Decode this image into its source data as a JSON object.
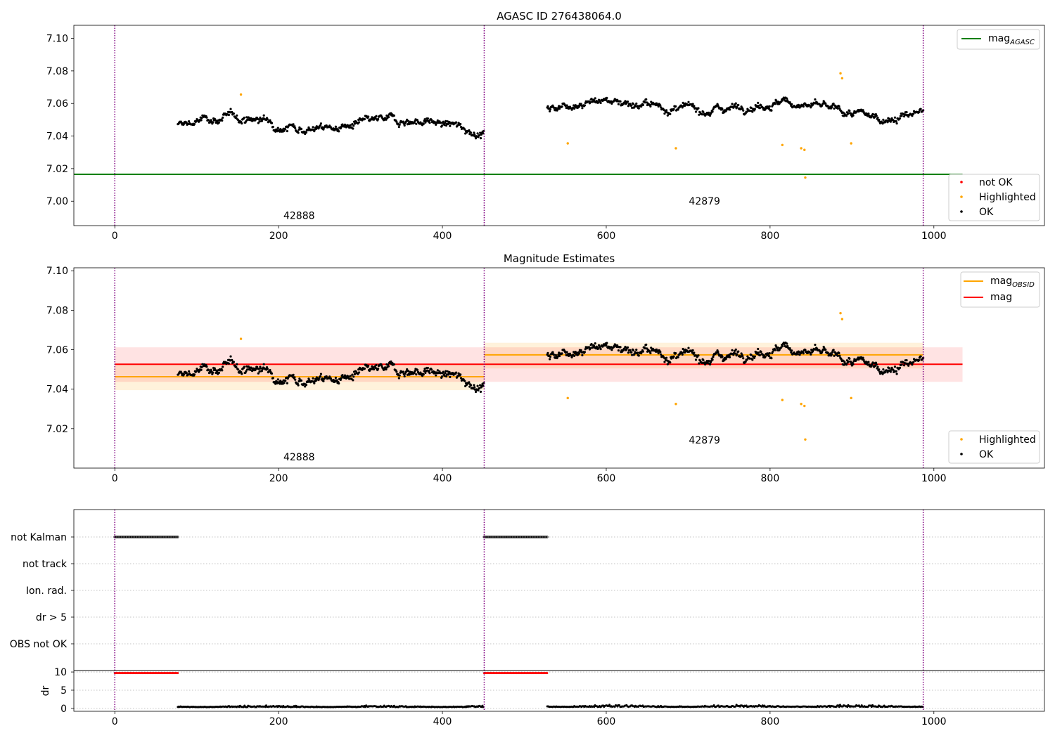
{
  "chart_data": [
    {
      "type": "scatter",
      "title": "AGASC ID 276438064.0",
      "xlim": [
        -50,
        1135
      ],
      "ylim": [
        6.985,
        7.108
      ],
      "xticks": [
        0,
        200,
        400,
        600,
        800,
        1000
      ],
      "yticks": [
        7.0,
        7.02,
        7.04,
        7.06,
        7.08,
        7.1
      ],
      "ytick_labels": [
        "7.00",
        "7.02",
        "7.04",
        "7.06",
        "7.08",
        "7.10"
      ],
      "obs_boundaries": [
        0,
        451,
        987
      ],
      "obsid_labels": [
        {
          "text": "42888",
          "x": 225,
          "y": 6.989
        },
        {
          "text": "42879",
          "x": 720,
          "y": 6.998
        }
      ],
      "lines": [
        {
          "name": "mag_AGASC",
          "color": "#008000",
          "y": 7.0165,
          "x": [
            -50,
            1035
          ]
        }
      ],
      "legend_lines": [
        {
          "text": "mag",
          "sub": "AGASC",
          "color": "#008000"
        }
      ],
      "legend_points": [
        {
          "text": "not OK",
          "color": "#ff0000"
        },
        {
          "text": "Highlighted",
          "color": "#ffa500"
        },
        {
          "text": "OK",
          "color": "#000000"
        }
      ],
      "highlighted_points": [
        {
          "x": 154,
          "y": 7.0655
        },
        {
          "x": 553,
          "y": 7.0355
        },
        {
          "x": 685,
          "y": 7.0325
        },
        {
          "x": 815,
          "y": 7.0345
        },
        {
          "x": 838,
          "y": 7.0325
        },
        {
          "x": 842,
          "y": 7.0315
        },
        {
          "x": 843,
          "y": 7.0145
        },
        {
          "x": 886,
          "y": 7.0785
        },
        {
          "x": 888,
          "y": 7.0755
        },
        {
          "x": 899,
          "y": 7.0355
        }
      ]
    },
    {
      "type": "scatter",
      "title": "Magnitude Estimates",
      "xlim": [
        -50,
        1135
      ],
      "ylim": [
        7.0,
        7.1015
      ],
      "xticks": [
        0,
        200,
        400,
        600,
        800,
        1000
      ],
      "yticks": [
        7.02,
        7.04,
        7.06,
        7.08,
        7.1
      ],
      "ytick_labels": [
        "7.02",
        "7.04",
        "7.06",
        "7.08",
        "7.10"
      ],
      "obs_boundaries": [
        0,
        451,
        987
      ],
      "obsid_labels": [
        {
          "text": "42888",
          "x": 225,
          "y": 7.004
        },
        {
          "text": "42879",
          "x": 720,
          "y": 7.0125
        }
      ],
      "bands": [
        {
          "x": [
            0,
            451
          ],
          "y": [
            7.0395,
            7.0525
          ],
          "color": "#ffa500",
          "opacity": 0.14
        },
        {
          "x": [
            451,
            987
          ],
          "y": [
            7.0505,
            7.0635
          ],
          "color": "#ffa500",
          "opacity": 0.14
        },
        {
          "x": [
            0,
            1035
          ],
          "y": [
            7.0437,
            7.0612
          ],
          "color": "#ff0000",
          "opacity": 0.11
        }
      ],
      "lines": [
        {
          "name": "mag_OBSID",
          "color": "#ffa500",
          "y": 7.0463,
          "x": [
            0,
            451
          ]
        },
        {
          "name": "mag_OBSID",
          "color": "#ffa500",
          "y": 7.0574,
          "x": [
            451,
            987
          ]
        },
        {
          "name": "mag",
          "color": "#ff0000",
          "y": 7.0526,
          "x": [
            0,
            1035
          ]
        }
      ],
      "legend_lines": [
        {
          "text": "mag",
          "sub": "OBSID",
          "color": "#ffa500"
        },
        {
          "text": "mag",
          "sub": "",
          "color": "#ff0000"
        }
      ],
      "legend_points": [
        {
          "text": "Highlighted",
          "color": "#ffa500"
        },
        {
          "text": "OK",
          "color": "#000000"
        }
      ],
      "highlighted_points": [
        {
          "x": 154,
          "y": 7.0655
        },
        {
          "x": 553,
          "y": 7.0355
        },
        {
          "x": 685,
          "y": 7.0325
        },
        {
          "x": 815,
          "y": 7.0345
        },
        {
          "x": 838,
          "y": 7.0325
        },
        {
          "x": 842,
          "y": 7.0315
        },
        {
          "x": 843,
          "y": 7.0145
        },
        {
          "x": 886,
          "y": 7.0785
        },
        {
          "x": 888,
          "y": 7.0755
        },
        {
          "x": 899,
          "y": 7.0355
        }
      ]
    },
    {
      "type": "scatter",
      "title": "",
      "xlim": [
        -50,
        1135
      ],
      "flag_rows": [
        "not Kalman",
        "not track",
        "Ion. rad.",
        "dr > 5",
        "OBS not OK"
      ],
      "obs_boundaries": [
        0,
        451,
        987
      ],
      "flags": [
        {
          "row": "not Kalman",
          "x": [
            0,
            77
          ]
        },
        {
          "row": "not Kalman",
          "x": [
            451,
            528
          ]
        }
      ],
      "dr": {
        "ylabel": "dr",
        "yticks": [
          0,
          5,
          10
        ],
        "ylim": [
          -0.8,
          10.4
        ],
        "not_ok_ranges": [
          {
            "x": [
              0,
              77
            ],
            "y": 9.7
          },
          {
            "x": [
              451,
              528
            ],
            "y": 9.7
          }
        ],
        "ok_ranges": [
          {
            "x": [
              77,
              451
            ],
            "y_mean": 0.35,
            "y_var": 0.3
          },
          {
            "x": [
              528,
              987
            ],
            "y_mean": 0.4,
            "y_var": 0.35
          }
        ]
      },
      "xticks": [
        0,
        200,
        400,
        600,
        800,
        1000
      ]
    }
  ],
  "colors": {
    "ok": "#000000",
    "highlighted": "#ffa500",
    "not_ok": "#ff0000",
    "boundary": "#800080",
    "axis": "#000000",
    "grid": "#b0b0b0"
  }
}
